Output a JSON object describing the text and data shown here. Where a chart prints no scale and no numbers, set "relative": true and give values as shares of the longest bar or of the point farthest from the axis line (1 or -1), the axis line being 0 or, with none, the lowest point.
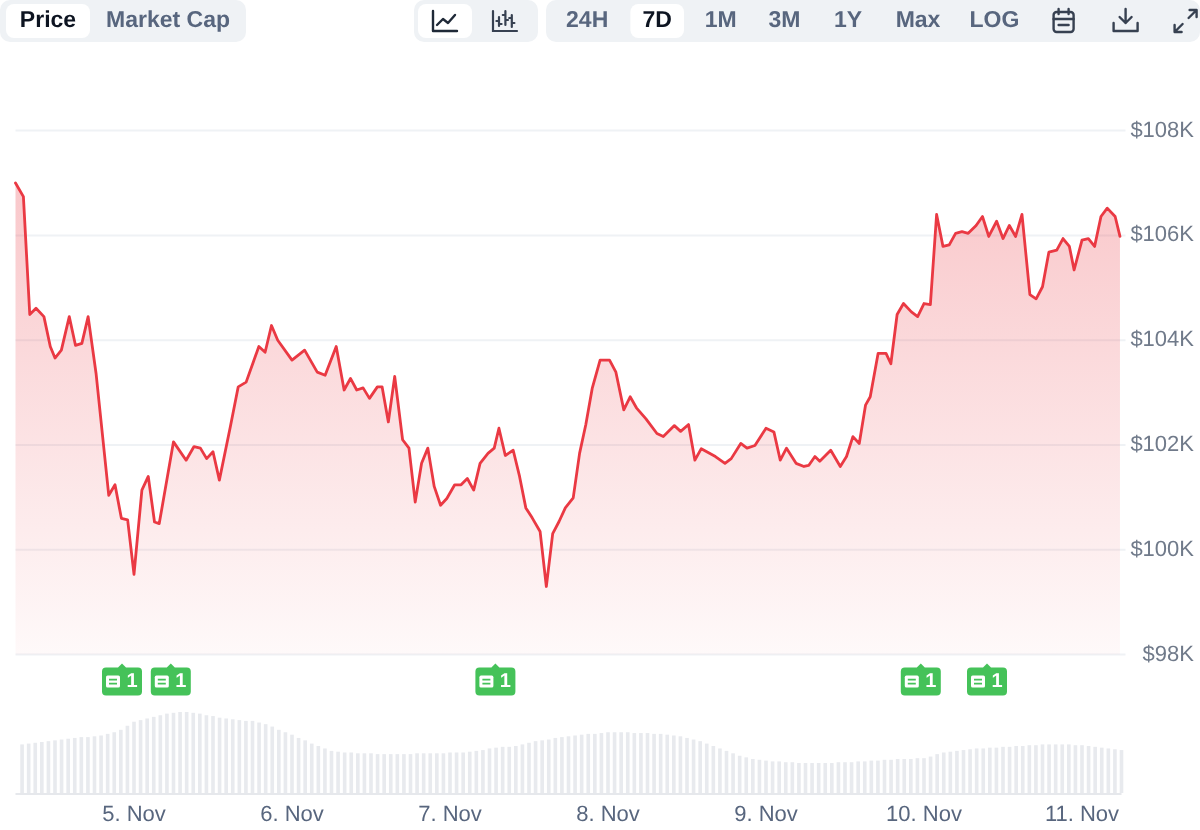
{
  "chart_data": [
    {
      "type": "area",
      "color": "#ea3943",
      "x": [
        "--11-04T06:00",
        "--11-04T07:12",
        "--11-04T08:10",
        "--11-04T09:07",
        "--11-04T10:19",
        "--11-04T11:17",
        "--11-04T12:00",
        "--11-04T12:58",
        "--11-04T14:10",
        "--11-04T15:07",
        "--11-04T16:05",
        "--11-04T17:02",
        "--11-04T18:14",
        "--11-04T20:10",
        "--11-04T21:07",
        "--11-04T22:05",
        "--11-04T23:02",
        "--11-05T00:00",
        "--11-05T01:12",
        "--11-05T02:10",
        "--11-05T03:07",
        "--11-05T03:50",
        "--11-05T06:00",
        "--11-05T07:55",
        "--11-05T09:07",
        "--11-05T10:05",
        "--11-05T11:02",
        "--11-05T12:00",
        "--11-05T12:58",
        "--11-05T14:38",
        "--11-05T15:50",
        "--11-05T17:02",
        "--11-05T18:58",
        "--11-05T19:55",
        "--11-05T20:53",
        "--11-05T21:50",
        "--11-06T00:00",
        "--11-06T01:55",
        "--11-06T03:50",
        "--11-06T05:02",
        "--11-06T06:43",
        "--11-06T07:55",
        "--11-06T08:53",
        "--11-06T09:50",
        "--11-06T10:48",
        "--11-06T11:46",
        "--11-06T12:58",
        "--11-06T13:41",
        "--11-06T14:38",
        "--11-06T15:36",
        "--11-06T16:48",
        "--11-06T17:46",
        "--11-06T18:43",
        "--11-06T19:41",
        "--11-06T20:38",
        "--11-06T21:36",
        "--11-06T22:34",
        "--11-06T23:31",
        "--11-07T00:43",
        "--11-07T01:41",
        "--11-07T02:38",
        "--11-07T03:36",
        "--11-07T04:34",
        "--11-07T05:46",
        "--11-07T06:43",
        "--11-07T07:26",
        "--11-07T08:24",
        "--11-07T09:36",
        "--11-07T10:34",
        "--11-07T11:31",
        "--11-07T12:29",
        "--11-07T13:41",
        "--11-07T14:38",
        "--11-07T15:36",
        "--11-07T16:34",
        "--11-07T17:31",
        "--11-07T18:43",
        "--11-07T19:41",
        "--11-07T20:38",
        "--11-07T21:36",
        "--11-07T22:48",
        "--11-08T00:14",
        "--11-08T01:12",
        "--11-08T02:24",
        "--11-08T03:22",
        "--11-08T04:19",
        "--11-08T05:46",
        "--11-08T07:26",
        "--11-08T08:24",
        "--11-08T10:05",
        "--11-08T11:02",
        "--11-08T12:14",
        "--11-08T13:12",
        "--11-08T14:10",
        "--11-08T16:19",
        "--11-08T17:46",
        "--11-08T18:43",
        "--11-08T20:10",
        "--11-08T21:07",
        "--11-08T22:19",
        "--11-09T00:00",
        "--11-09T01:12",
        "--11-09T02:10",
        "--11-09T03:07",
        "--11-09T04:34",
        "--11-09T05:46",
        "--11-09T06:29",
        "--11-09T07:26",
        "--11-09T08:10",
        "--11-09T09:50",
        "--11-09T11:17",
        "--11-09T12:14",
        "--11-09T13:12",
        "--11-09T14:10",
        "--11-09T15:07",
        "--11-09T15:50",
        "--11-09T17:02",
        "--11-09T18:14",
        "--11-09T18:58",
        "--11-09T19:55",
        "--11-09T20:53",
        "--11-09T22:05",
        "--11-09T23:02",
        "--11-10T00:00",
        "--11-10T00:58",
        "--11-10T01:55",
        "--11-10T02:53",
        "--11-10T03:50",
        "--11-10T04:48",
        "--11-10T05:46",
        "--11-10T06:43",
        "--11-10T07:55",
        "--11-10T08:53",
        "--11-10T09:50",
        "--11-10T11:02",
        "--11-10T12:00",
        "--11-10T12:58",
        "--11-10T13:55",
        "--11-10T14:53",
        "--11-10T16:05",
        "--11-10T17:02",
        "--11-10T18:00",
        "--11-10T18:58",
        "--11-10T20:10",
        "--11-10T21:07",
        "--11-10T22:05",
        "--11-10T22:48",
        "--11-11T00:00",
        "--11-11T00:58",
        "--11-11T01:55",
        "--11-11T02:53",
        "--11-11T03:50",
        "--11-11T05:02",
        "--11-11T05:46"
      ],
      "values": [
        107.0,
        106.74,
        104.49,
        104.61,
        104.45,
        103.88,
        103.66,
        103.81,
        104.45,
        103.9,
        103.94,
        104.45,
        103.37,
        101.04,
        101.24,
        100.6,
        100.57,
        99.53,
        101.14,
        101.4,
        100.53,
        100.5,
        102.06,
        101.71,
        101.97,
        101.94,
        101.74,
        101.87,
        101.33,
        102.35,
        103.11,
        103.2,
        103.88,
        103.77,
        104.28,
        104.0,
        103.62,
        103.81,
        103.39,
        103.33,
        103.88,
        103.05,
        103.27,
        103.05,
        103.09,
        102.89,
        103.11,
        103.11,
        102.44,
        103.31,
        102.1,
        101.94,
        100.91,
        101.65,
        101.94,
        101.21,
        100.85,
        100.98,
        101.24,
        101.24,
        101.36,
        101.14,
        101.65,
        101.84,
        101.94,
        102.32,
        101.8,
        101.9,
        101.4,
        100.8,
        100.61,
        100.35,
        99.3,
        100.31,
        100.54,
        100.8,
        100.99,
        101.84,
        102.39,
        103.08,
        103.62,
        103.62,
        103.39,
        102.67,
        102.92,
        102.71,
        102.5,
        102.22,
        102.16,
        102.37,
        102.26,
        102.39,
        101.71,
        101.93,
        101.78,
        101.65,
        101.74,
        102.03,
        101.94,
        101.99,
        102.32,
        102.25,
        101.71,
        101.94,
        101.65,
        101.59,
        101.61,
        101.78,
        101.69,
        101.9,
        101.59,
        101.78,
        102.16,
        102.03,
        102.76,
        102.92,
        103.75,
        103.75,
        103.55,
        104.49,
        104.7,
        104.54,
        104.45,
        104.7,
        104.68,
        106.4,
        105.79,
        105.82,
        106.04,
        106.07,
        106.04,
        106.19,
        106.36,
        105.98,
        106.27,
        105.94,
        106.19,
        105.98,
        106.4,
        104.87,
        104.79,
        105.02,
        105.68,
        105.72,
        105.94,
        105.79,
        105.34,
        105.91,
        105.94,
        105.79,
        106.36,
        106.52,
        106.36,
        105.98
      ],
      "xlim": [
        "--11-04T06:00",
        "--11-11T06:00"
      ],
      "ylim": [
        98,
        108
      ],
      "yticks": [
        {
          "value": 98,
          "label": "$98K"
        },
        {
          "value": 100,
          "label": "$100K"
        },
        {
          "value": 102,
          "label": "$102K"
        },
        {
          "value": 104,
          "label": "$104K"
        },
        {
          "value": 106,
          "label": "$106K"
        },
        {
          "value": 108,
          "label": "$108K"
        }
      ],
      "grid": "y",
      "tick_labels": "y",
      "annotations": [
        "Price",
        "Market Cap",
        "24H",
        "7D",
        "1M",
        "3M",
        "1Y",
        "Max",
        "LOG",
        "1",
        "1",
        "1",
        "1",
        "1"
      ]
    },
    {
      "type": "bar",
      "relative": true,
      "color": "#e8eaee",
      "x": [
        "--11-04T07:00",
        "--11-04T08:00",
        "--11-04T09:00",
        "--11-04T10:00",
        "--11-04T11:00",
        "--11-04T12:00",
        "--11-04T13:00",
        "--11-04T14:00",
        "--11-04T15:00",
        "--11-04T16:00",
        "--11-04T17:00",
        "--11-04T18:00",
        "--11-04T19:00",
        "--11-04T20:00",
        "--11-04T21:00",
        "--11-04T22:00",
        "--11-04T23:00",
        "--11-05T00:00",
        "--11-05T01:00",
        "--11-05T02:00",
        "--11-05T03:00",
        "--11-05T04:00",
        "--11-05T05:00",
        "--11-05T06:00",
        "--11-05T07:00",
        "--11-05T08:00",
        "--11-05T09:00",
        "--11-05T10:00",
        "--11-05T11:00",
        "--11-05T12:00",
        "--11-05T13:00",
        "--11-05T14:00",
        "--11-05T15:00",
        "--11-05T16:00",
        "--11-05T17:00",
        "--11-05T18:00",
        "--11-05T19:00",
        "--11-05T20:00",
        "--11-05T21:00",
        "--11-05T22:00",
        "--11-05T23:00",
        "--11-06T00:00",
        "--11-06T01:00",
        "--11-06T02:00",
        "--11-06T03:00",
        "--11-06T04:00",
        "--11-06T05:00",
        "--11-06T06:00",
        "--11-06T07:00",
        "--11-06T08:00",
        "--11-06T09:00",
        "--11-06T10:00",
        "--11-06T11:00",
        "--11-06T12:00",
        "--11-06T13:00",
        "--11-06T14:00",
        "--11-06T15:00",
        "--11-06T16:00",
        "--11-06T17:00",
        "--11-06T18:00",
        "--11-06T19:00",
        "--11-06T20:00",
        "--11-06T21:00",
        "--11-06T22:00",
        "--11-06T23:00",
        "--11-07T00:00",
        "--11-07T01:00",
        "--11-07T02:00",
        "--11-07T03:00",
        "--11-07T04:00",
        "--11-07T05:00",
        "--11-07T06:00",
        "--11-07T07:00",
        "--11-07T08:00",
        "--11-07T09:00",
        "--11-07T10:00",
        "--11-07T11:00",
        "--11-07T12:00",
        "--11-07T13:00",
        "--11-07T14:00",
        "--11-07T15:00",
        "--11-07T16:00",
        "--11-07T17:00",
        "--11-07T18:00",
        "--11-07T19:00",
        "--11-07T20:00",
        "--11-07T21:00",
        "--11-07T22:00",
        "--11-07T23:00",
        "--11-08T00:00",
        "--11-08T01:00",
        "--11-08T02:00",
        "--11-08T03:00",
        "--11-08T04:00",
        "--11-08T05:00",
        "--11-08T06:00",
        "--11-08T07:00",
        "--11-08T08:00",
        "--11-08T09:00",
        "--11-08T10:00",
        "--11-08T11:00",
        "--11-08T12:00",
        "--11-08T13:00",
        "--11-08T14:00",
        "--11-08T15:00",
        "--11-08T16:00",
        "--11-08T17:00",
        "--11-08T18:00",
        "--11-08T19:00",
        "--11-08T20:00",
        "--11-08T21:00",
        "--11-08T22:00",
        "--11-08T23:00",
        "--11-09T00:00",
        "--11-09T01:00",
        "--11-09T02:00",
        "--11-09T03:00",
        "--11-09T04:00",
        "--11-09T05:00",
        "--11-09T06:00",
        "--11-09T07:00",
        "--11-09T08:00",
        "--11-09T09:00",
        "--11-09T10:00",
        "--11-09T11:00",
        "--11-09T12:00",
        "--11-09T13:00",
        "--11-09T14:00",
        "--11-09T15:00",
        "--11-09T16:00",
        "--11-09T17:00",
        "--11-09T18:00",
        "--11-09T19:00",
        "--11-09T20:00",
        "--11-09T21:00",
        "--11-09T22:00",
        "--11-09T23:00",
        "--11-10T00:00",
        "--11-10T01:00",
        "--11-10T02:00",
        "--11-10T03:00",
        "--11-10T04:00",
        "--11-10T05:00",
        "--11-10T06:00",
        "--11-10T07:00",
        "--11-10T08:00",
        "--11-10T09:00",
        "--11-10T10:00",
        "--11-10T11:00",
        "--11-10T12:00",
        "--11-10T13:00",
        "--11-10T14:00",
        "--11-10T15:00",
        "--11-10T16:00",
        "--11-10T17:00",
        "--11-10T18:00",
        "--11-10T19:00",
        "--11-10T20:00",
        "--11-10T21:00",
        "--11-10T22:00",
        "--11-10T23:00",
        "--11-11T00:00",
        "--11-11T01:00",
        "--11-11T02:00",
        "--11-11T03:00",
        "--11-11T04:00",
        "--11-11T05:00",
        "--11-11T06:00"
      ],
      "values": [
        0.6,
        0.61,
        0.62,
        0.63,
        0.64,
        0.65,
        0.66,
        0.67,
        0.68,
        0.69,
        0.69,
        0.7,
        0.71,
        0.73,
        0.75,
        0.78,
        0.83,
        0.88,
        0.9,
        0.92,
        0.94,
        0.96,
        0.98,
        0.99,
        1.0,
        1.0,
        0.99,
        0.98,
        0.96,
        0.95,
        0.93,
        0.92,
        0.91,
        0.9,
        0.89,
        0.89,
        0.87,
        0.85,
        0.82,
        0.78,
        0.75,
        0.72,
        0.68,
        0.65,
        0.61,
        0.58,
        0.55,
        0.52,
        0.51,
        0.5,
        0.5,
        0.49,
        0.49,
        0.49,
        0.48,
        0.48,
        0.48,
        0.48,
        0.48,
        0.48,
        0.49,
        0.49,
        0.49,
        0.49,
        0.49,
        0.5,
        0.5,
        0.5,
        0.51,
        0.52,
        0.53,
        0.55,
        0.56,
        0.57,
        0.57,
        0.58,
        0.6,
        0.62,
        0.64,
        0.65,
        0.66,
        0.68,
        0.69,
        0.7,
        0.71,
        0.72,
        0.73,
        0.73,
        0.74,
        0.75,
        0.75,
        0.75,
        0.75,
        0.74,
        0.74,
        0.74,
        0.73,
        0.73,
        0.72,
        0.71,
        0.7,
        0.68,
        0.66,
        0.64,
        0.61,
        0.58,
        0.55,
        0.52,
        0.49,
        0.46,
        0.44,
        0.42,
        0.41,
        0.4,
        0.39,
        0.39,
        0.38,
        0.38,
        0.37,
        0.37,
        0.37,
        0.37,
        0.37,
        0.37,
        0.38,
        0.38,
        0.38,
        0.39,
        0.39,
        0.4,
        0.4,
        0.41,
        0.41,
        0.42,
        0.42,
        0.42,
        0.43,
        0.43,
        0.45,
        0.48,
        0.5,
        0.51,
        0.52,
        0.53,
        0.54,
        0.55,
        0.55,
        0.56,
        0.56,
        0.57,
        0.57,
        0.58,
        0.58,
        0.59,
        0.59,
        0.6,
        0.6,
        0.6,
        0.6,
        0.6,
        0.59,
        0.59,
        0.58,
        0.57,
        0.56,
        0.55,
        0.54,
        0.53
      ],
      "xlim": [
        "--11-04T06:00",
        "--11-11T06:00"
      ],
      "xticks": [
        {
          "value": "--11-05",
          "label": "5. Nov"
        },
        {
          "value": "--11-06",
          "label": "6. Nov"
        },
        {
          "value": "--11-07",
          "label": "7. Nov"
        },
        {
          "value": "--11-08",
          "label": "8. Nov"
        },
        {
          "value": "--11-09",
          "label": "9. Nov"
        },
        {
          "value": "--11-10",
          "label": "10. Nov"
        },
        {
          "value": "--11-11",
          "label": "11. Nov"
        }
      ]
    }
  ]
}
